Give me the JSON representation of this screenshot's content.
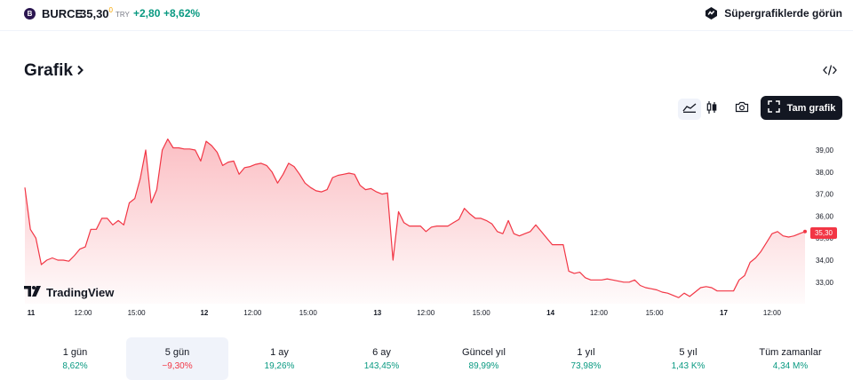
{
  "symbol": {
    "logo": "B",
    "name": "BURCE",
    "price": "35,30",
    "price_sup": "0",
    "currency": "TRY",
    "change": "+2,80",
    "change_pct": "+8,62%",
    "change_color": "#089981"
  },
  "header": {
    "super_label": "Süpergrafiklerde görün"
  },
  "title": "Grafik",
  "toolbar": {
    "full_label": "Tam grafik"
  },
  "brand": "TradingView",
  "last_price_label": "35,30",
  "periods": [
    {
      "label": "1 gün",
      "value": "8,62%",
      "dir": "up"
    },
    {
      "label": "5 gün",
      "value": "−9,30%",
      "dir": "down",
      "active": true
    },
    {
      "label": "1 ay",
      "value": "19,26%",
      "dir": "up"
    },
    {
      "label": "6 ay",
      "value": "143,45%",
      "dir": "up"
    },
    {
      "label": "Güncel yıl",
      "value": "89,99%",
      "dir": "up"
    },
    {
      "label": "1 yıl",
      "value": "73,98%",
      "dir": "up"
    },
    {
      "label": "5 yıl",
      "value": "1,43 K%",
      "dir": "up"
    },
    {
      "label": "Tüm zamanlar",
      "value": "4,34 M%",
      "dir": "up"
    }
  ],
  "chart_data": {
    "type": "area",
    "title": "",
    "line_color": "#f23645",
    "ylim": [
      32.0,
      39.6
    ],
    "y_ticks": [
      "39,00",
      "38,00",
      "37,00",
      "36,00",
      "35,00",
      "34,00",
      "33,00"
    ],
    "y_tick_values": [
      39,
      38,
      37,
      36,
      35,
      34,
      33
    ],
    "x_ticks": [
      {
        "label": "11",
        "bold": true,
        "t": 0
      },
      {
        "label": "12:00",
        "bold": false,
        "t": 0.072
      },
      {
        "label": "15:00",
        "bold": false,
        "t": 0.146
      },
      {
        "label": "12",
        "bold": true,
        "t": 0.24
      },
      {
        "label": "12:00",
        "bold": false,
        "t": 0.307
      },
      {
        "label": "15:00",
        "bold": false,
        "t": 0.384
      },
      {
        "label": "13",
        "bold": true,
        "t": 0.48
      },
      {
        "label": "12:00",
        "bold": false,
        "t": 0.547
      },
      {
        "label": "15:00",
        "bold": false,
        "t": 0.624
      },
      {
        "label": "14",
        "bold": true,
        "t": 0.72
      },
      {
        "label": "12:00",
        "bold": false,
        "t": 0.787
      },
      {
        "label": "15:00",
        "bold": false,
        "t": 0.864
      },
      {
        "label": "17",
        "bold": true,
        "t": 0.96
      },
      {
        "label": "12:00",
        "bold": false,
        "t": 1.027
      }
    ],
    "series": [
      {
        "values": [
          37.3,
          35.4,
          35.0,
          33.8,
          34.0,
          34.1,
          34.0,
          34.0,
          33.95,
          34.2,
          34.5,
          34.6,
          35.4,
          35.4,
          35.9,
          35.9,
          35.6,
          35.8,
          35.6,
          36.6,
          36.8,
          37.7,
          39.0,
          36.6,
          37.2,
          39.0,
          39.5,
          39.1,
          39.1,
          39.05,
          39.05,
          39.0,
          38.5,
          39.4,
          39.2,
          38.9,
          38.3,
          38.45,
          38.5,
          37.9,
          38.2,
          38.25,
          38.35,
          38.4,
          38.3,
          38.0,
          37.5,
          37.9,
          38.4,
          38.25,
          37.9,
          37.5,
          37.3,
          37.15,
          37.1,
          37.2,
          37.75,
          37.85,
          37.9,
          37.95,
          37.9,
          37.4,
          37.2,
          37.25,
          37.1,
          37.0,
          37.05,
          34.0,
          36.2,
          35.7,
          35.55,
          35.55,
          35.55,
          35.3,
          35.5,
          35.55,
          35.55,
          35.55,
          35.7,
          35.85,
          36.35,
          36.1,
          35.9,
          35.9,
          35.8,
          35.65,
          35.3,
          35.2,
          35.8,
          35.2,
          35.1,
          35.2,
          35.3,
          35.6,
          35.3,
          35.0,
          34.7,
          34.7,
          34.7,
          33.5,
          33.4,
          33.45,
          33.2,
          33.1,
          33.1,
          33.1,
          33.15,
          33.1,
          33.05,
          33.0,
          33.0,
          33.1,
          32.85,
          32.75,
          32.7,
          32.65,
          32.55,
          32.5,
          32.4,
          32.3,
          32.5,
          32.35,
          32.55,
          32.75,
          32.8,
          32.75,
          32.6,
          32.6,
          32.6,
          32.6,
          33.1,
          33.3,
          33.9,
          34.1,
          34.4,
          34.8,
          35.2,
          35.3,
          35.1,
          35.05,
          35.1,
          35.2,
          35.3
        ]
      }
    ]
  }
}
